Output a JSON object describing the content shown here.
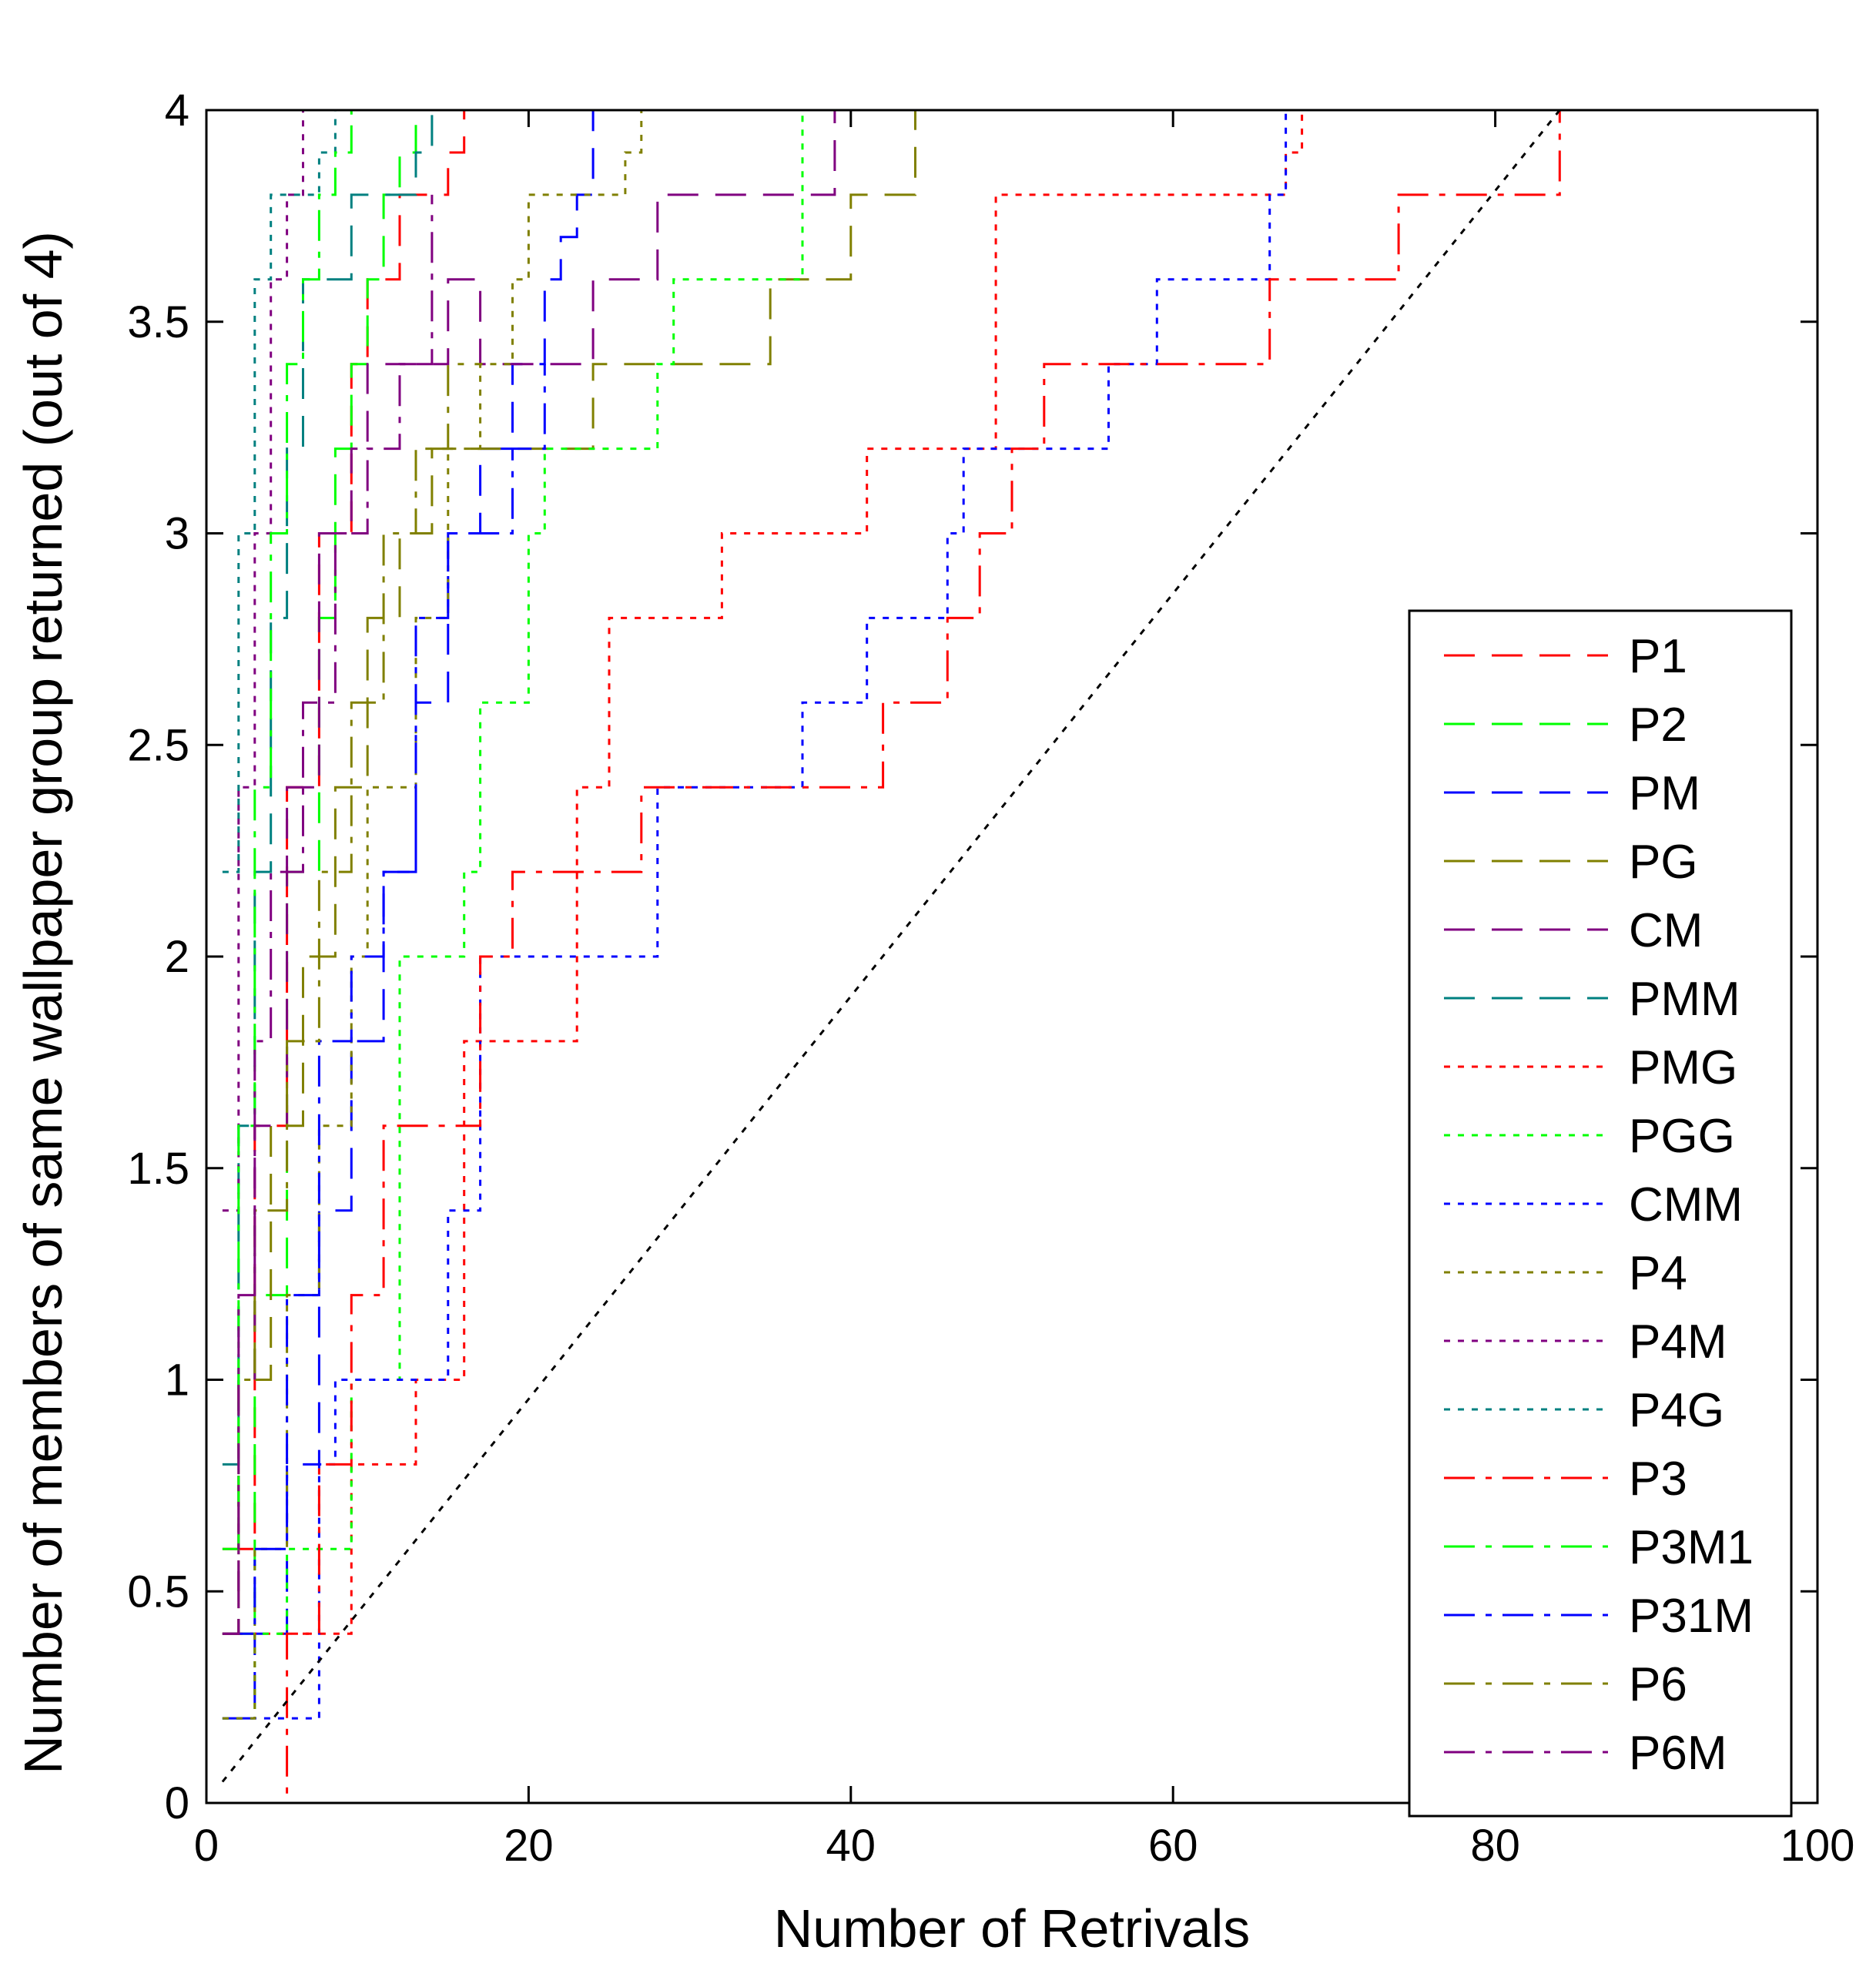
{
  "chart_data": {
    "type": "line",
    "title": "",
    "xlabel": "Number of Retrivals",
    "ylabel": "Number of members of same wallpaper group returned (out of 4)",
    "xlim": [
      0,
      100
    ],
    "ylim": [
      0,
      4
    ],
    "xticks": [
      0,
      20,
      40,
      60,
      80,
      100
    ],
    "xtick_labels": [
      "0",
      "20",
      "40",
      "60",
      "80",
      "100"
    ],
    "yticks": [
      0,
      0.5,
      1,
      1.5,
      2,
      2.5,
      3,
      3.5,
      4
    ],
    "ytick_labels": [
      "0",
      "0.5",
      "1",
      "1.5",
      "2",
      "2.5",
      "3",
      "3.5",
      "4"
    ],
    "grid": false,
    "legend_position": "lower-right",
    "series": [
      {
        "name": "P1",
        "color": "#ff0000",
        "dash": "dashed",
        "x": [
          1,
          3,
          5,
          7,
          9,
          10,
          12,
          14,
          15,
          16
        ],
        "y": [
          0.6,
          1.6,
          2.4,
          3.0,
          3.4,
          3.6,
          3.8,
          3.8,
          3.9,
          4.0
        ]
      },
      {
        "name": "P2",
        "color": "#00ff00",
        "dash": "dashed",
        "x": [
          1,
          3,
          5,
          7,
          8,
          9,
          10,
          11,
          12,
          13
        ],
        "y": [
          0.4,
          1.2,
          2.2,
          2.8,
          3.2,
          3.4,
          3.6,
          3.8,
          3.9,
          4.0
        ]
      },
      {
        "name": "PM",
        "color": "#0000ff",
        "dash": "dashed",
        "x": [
          1,
          3,
          5,
          7,
          9,
          11,
          13,
          15,
          17,
          19,
          21,
          22,
          23,
          24,
          30,
          31
        ],
        "y": [
          0.2,
          0.4,
          0.8,
          1.4,
          1.8,
          2.2,
          2.6,
          3.0,
          3.2,
          3.4,
          3.6,
          3.7,
          3.8,
          4.0,
          4.0,
          4.0
        ]
      },
      {
        "name": "PG",
        "color": "#808000",
        "dash": "dashed",
        "x": [
          1,
          2,
          4,
          6,
          8,
          10,
          12,
          14,
          20,
          22,
          24,
          26,
          30,
          33,
          35,
          38,
          40,
          43,
          44
        ],
        "y": [
          0.4,
          1.0,
          1.6,
          2.0,
          2.4,
          2.8,
          3.0,
          3.2,
          3.2,
          3.2,
          3.4,
          3.4,
          3.4,
          3.4,
          3.6,
          3.6,
          3.8,
          3.8,
          4.0
        ]
      },
      {
        "name": "CM",
        "color": "#800080",
        "dash": "dashed",
        "x": [
          1,
          2,
          3,
          5,
          7,
          9,
          10,
          13,
          15,
          17,
          20,
          22,
          24,
          26,
          28,
          32,
          36,
          38,
          39
        ],
        "y": [
          0.4,
          1.0,
          1.6,
          2.4,
          3.0,
          3.2,
          3.4,
          3.4,
          3.6,
          3.4,
          3.4,
          3.4,
          3.6,
          3.6,
          3.8,
          3.8,
          3.8,
          3.8,
          4.0
        ]
      },
      {
        "name": "PMM",
        "color": "#008080",
        "dash": "dashed",
        "x": [
          1,
          2,
          3,
          4,
          5,
          6,
          7,
          8,
          9,
          10,
          12,
          13,
          14
        ],
        "y": [
          0.8,
          1.6,
          2.2,
          2.8,
          3.2,
          3.6,
          3.6,
          3.6,
          3.8,
          3.8,
          3.8,
          3.9,
          4.0
        ]
      },
      {
        "name": "PMG",
        "color": "#ff0000",
        "dash": "dotted",
        "x": [
          1,
          3,
          5,
          8,
          9,
          12,
          13,
          15,
          16,
          17,
          21,
          23,
          25,
          30,
          32,
          40,
          41,
          47,
          49,
          66,
          67,
          68
        ],
        "y": [
          0.4,
          0.4,
          0.4,
          0.4,
          0.8,
          0.8,
          1.0,
          1.0,
          1.8,
          1.8,
          1.8,
          2.4,
          2.8,
          2.8,
          3.0,
          3.0,
          3.2,
          3.2,
          3.8,
          3.8,
          3.9,
          4.0
        ]
      },
      {
        "name": "PGG",
        "color": "#00ff00",
        "dash": "dotted",
        "x": [
          1,
          2,
          3,
          5,
          8,
          9,
          12,
          15,
          16,
          17,
          19,
          20,
          21,
          26,
          28,
          29,
          34,
          37
        ],
        "y": [
          0.2,
          0.2,
          0.4,
          0.6,
          0.6,
          1.0,
          2.0,
          2.0,
          2.2,
          2.6,
          2.6,
          3.0,
          3.2,
          3.2,
          3.4,
          3.6,
          3.6,
          4.0
        ]
      },
      {
        "name": "CMM",
        "color": "#0000ff",
        "dash": "dotted",
        "x": [
          1,
          4,
          7,
          8,
          13,
          15,
          17,
          26,
          28,
          36,
          37,
          40,
          41,
          44,
          46,
          47,
          54,
          56,
          59,
          66,
          67
        ],
        "y": [
          0.2,
          0.2,
          0.8,
          1.0,
          1.0,
          1.4,
          2.0,
          2.0,
          2.4,
          2.4,
          2.6,
          2.6,
          2.8,
          2.8,
          3.0,
          3.2,
          3.2,
          3.4,
          3.6,
          3.8,
          4.0
        ]
      },
      {
        "name": "P4",
        "color": "#808000",
        "dash": "dotted",
        "x": [
          1,
          3,
          5,
          7,
          9,
          10,
          13,
          15,
          17,
          19,
          20,
          25,
          26,
          27
        ],
        "y": [
          0.2,
          0.6,
          1.2,
          1.6,
          2.0,
          2.4,
          2.8,
          3.2,
          3.4,
          3.6,
          3.8,
          3.8,
          3.9,
          4.0
        ]
      },
      {
        "name": "P4M",
        "color": "#800080",
        "dash": "dotted",
        "x": [
          1,
          2,
          3,
          4,
          5,
          6
        ],
        "y": [
          1.4,
          2.4,
          3.0,
          3.6,
          3.8,
          4.0
        ]
      },
      {
        "name": "P4G",
        "color": "#008080",
        "dash": "dotted",
        "x": [
          1,
          2,
          3,
          4,
          6,
          7,
          8,
          9
        ],
        "y": [
          2.2,
          3.0,
          3.6,
          3.8,
          3.8,
          3.9,
          4.0,
          4.0
        ]
      },
      {
        "name": "P3",
        "color": "#ff0000",
        "dash": "dashdot",
        "x": [
          3,
          5,
          7,
          9,
          11,
          15,
          17,
          19,
          25,
          27,
          30,
          34,
          40,
          42,
          44,
          46,
          48,
          50,
          52,
          64,
          66,
          72,
          74,
          83,
          84
        ],
        "y": [
          0.0,
          0.4,
          0.8,
          1.2,
          1.6,
          1.6,
          2.0,
          2.2,
          2.2,
          2.4,
          2.4,
          2.4,
          2.4,
          2.6,
          2.6,
          2.8,
          3.0,
          3.2,
          3.4,
          3.4,
          3.6,
          3.6,
          3.8,
          3.8,
          4.0
        ]
      },
      {
        "name": "P3M1",
        "color": "#00ff00",
        "dash": "dashdot",
        "x": [
          1,
          2,
          3,
          4,
          5,
          6,
          7,
          8,
          9
        ],
        "y": [
          0.6,
          1.6,
          2.4,
          3.0,
          3.4,
          3.6,
          3.8,
          3.9,
          4.0
        ]
      },
      {
        "name": "P31M",
        "color": "#0000ff",
        "dash": "dashdot",
        "x": [
          1,
          3,
          5,
          7,
          9,
          11,
          13,
          15,
          17,
          19,
          21
        ],
        "y": [
          0.4,
          0.6,
          1.2,
          1.8,
          2.0,
          2.2,
          2.8,
          3.0,
          3.0,
          3.2,
          3.4
        ]
      },
      {
        "name": "P6",
        "color": "#808000",
        "dash": "dashdot",
        "x": [
          1,
          2,
          3,
          5,
          7,
          9,
          11,
          13,
          15,
          17
        ],
        "y": [
          0.4,
          1.0,
          1.4,
          1.8,
          2.2,
          2.6,
          3.0,
          3.2,
          3.4,
          3.4
        ]
      },
      {
        "name": "P6M",
        "color": "#800080",
        "dash": "dashdot",
        "x": [
          1,
          2,
          3,
          4,
          6,
          8,
          10,
          12,
          14
        ],
        "y": [
          0.4,
          1.2,
          1.8,
          2.2,
          2.6,
          3.0,
          3.2,
          3.4,
          3.8
        ]
      },
      {
        "name": "",
        "color": "#000000",
        "dash": "dotted",
        "legend": false,
        "x": [
          1,
          84
        ],
        "y": [
          0.05,
          4.0
        ]
      }
    ]
  }
}
